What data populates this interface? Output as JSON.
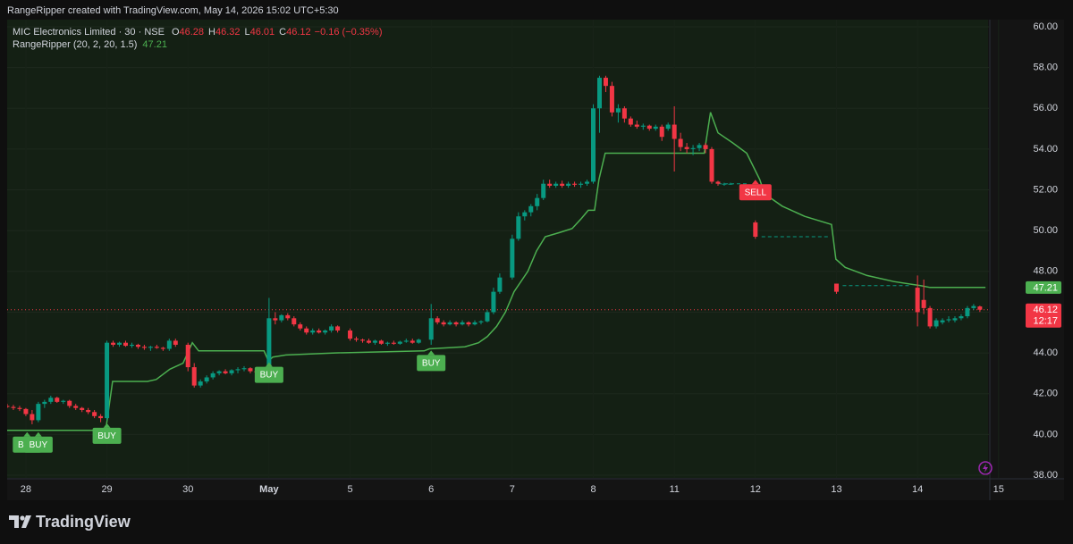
{
  "header": "RangeRipper created with TradingView.com, May 14, 2026 15:02 UTC+5:30",
  "footer": {
    "logo": "TradingView"
  },
  "chart_data": {
    "type": "candlestick",
    "symbol": "MIC Electronics Limited · 30 · NSE",
    "legend_labels": [
      "O",
      "H",
      "L",
      "C"
    ],
    "change": "−0.16 (−0.35%)",
    "countdown": "12:17",
    "up_color": "#089981",
    "down_color": "#f23645",
    "grid": true,
    "xlim": [
      -3,
      166.5
    ],
    "xticks": [
      {
        "value": 0,
        "label": "28"
      },
      {
        "value": 13,
        "label": "29"
      },
      {
        "value": 26,
        "label": "30"
      },
      {
        "value": 39,
        "label": "May"
      },
      {
        "value": 52,
        "label": "5"
      },
      {
        "value": 65,
        "label": "6"
      },
      {
        "value": 78,
        "label": "7"
      },
      {
        "value": 91,
        "label": "8"
      },
      {
        "value": 104,
        "label": "11"
      },
      {
        "value": 117,
        "label": "12"
      },
      {
        "value": 130,
        "label": "13"
      },
      {
        "value": 143,
        "label": "14"
      },
      {
        "value": 156,
        "label": "15"
      }
    ],
    "ylim": [
      38,
      60
    ],
    "yticks": [
      {
        "value": 38,
        "label": "38.00"
      },
      {
        "value": 40,
        "label": "40.00"
      },
      {
        "value": 42,
        "label": "42.00"
      },
      {
        "value": 44,
        "label": "44.00"
      },
      {
        "value": 46,
        "label": "46.00"
      },
      {
        "value": 48,
        "label": "48.00"
      },
      {
        "value": 50,
        "label": "50.00"
      },
      {
        "value": 52,
        "label": "52.00"
      },
      {
        "value": 54,
        "label": "54.00"
      },
      {
        "value": 56,
        "label": "56.00"
      },
      {
        "value": 58,
        "label": "58.00"
      },
      {
        "value": 60,
        "label": "60.00"
      }
    ],
    "indicator": {
      "name": "RangeRipper (20, 2, 20, 1.5)",
      "color": "#4caf50",
      "x": [
        -3,
        12.8,
        13.9,
        19.5,
        20.9,
        23.1,
        25.2,
        26.7,
        27.7,
        38.2,
        38.9,
        39.6,
        41.7,
        49.6,
        63.9,
        64.7,
        70.4,
        72.6,
        74,
        75.5,
        76.9,
        78.3,
        80.5,
        81.9,
        83.3,
        85.5,
        87.6,
        89.1,
        90.2,
        91.2,
        91.9,
        92.9,
        108.8,
        109.8,
        111,
        113.4,
        115.6,
        117.7,
        118.5,
        121.3,
        124.9,
        129.2,
        129.9,
        131.4,
        134.9,
        139.2,
        143.5,
        145,
        153.9
      ],
      "values": [
        40.2,
        40.2,
        42.6,
        42.6,
        42.7,
        43.2,
        43.5,
        44.5,
        44.1,
        44.1,
        43.6,
        43.8,
        43.9,
        44,
        44.1,
        44.2,
        44.3,
        44.5,
        44.8,
        45.3,
        46,
        47,
        48,
        49,
        49.7,
        49.9,
        50.1,
        50.6,
        51,
        51,
        52.5,
        53.8,
        53.8,
        55.8,
        54.8,
        54.3,
        53.8,
        52.5,
        51.8,
        51.2,
        50.7,
        50.3,
        48.6,
        48.2,
        47.8,
        47.5,
        47.3,
        47.21,
        47.21
      ]
    },
    "signals": [
      {
        "label": "BUY",
        "x": 0.2
      },
      {
        "label": "BUY",
        "x": 2
      },
      {
        "label": "BUY",
        "x": 13
      },
      {
        "label": "BUY",
        "x": 39
      },
      {
        "label": "BUY",
        "x": 65
      },
      {
        "label": "SELL",
        "x": 117
      }
    ],
    "dashes": [
      {
        "x": [
          111,
          116
        ],
        "value": 52.3
      },
      {
        "x": [
          118,
          129
        ],
        "value": 49.7
      },
      {
        "x": [
          131,
          142
        ],
        "value": 47.3
      }
    ],
    "candles": [
      {
        "x": -3,
        "o": 41.4,
        "h": 41.5,
        "l": 41.3,
        "c": 41.35
      },
      {
        "x": -2,
        "o": 41.35,
        "h": 41.45,
        "l": 41.2,
        "c": 41.3
      },
      {
        "x": -1,
        "o": 41.3,
        "h": 41.4,
        "l": 41.15,
        "c": 41.25
      },
      {
        "x": 0,
        "o": 41.25,
        "h": 41.3,
        "l": 40.9,
        "c": 41
      },
      {
        "x": 1,
        "o": 41,
        "h": 41.2,
        "l": 40.5,
        "c": 40.7
      },
      {
        "x": 2,
        "o": 40.7,
        "h": 41.6,
        "l": 40.6,
        "c": 41.5
      },
      {
        "x": 3,
        "o": 41.5,
        "h": 41.7,
        "l": 41.3,
        "c": 41.6
      },
      {
        "x": 4,
        "o": 41.6,
        "h": 41.9,
        "l": 41.5,
        "c": 41.8
      },
      {
        "x": 5,
        "o": 41.8,
        "h": 41.85,
        "l": 41.55,
        "c": 41.6
      },
      {
        "x": 6,
        "o": 41.6,
        "h": 41.7,
        "l": 41.5,
        "c": 41.65
      },
      {
        "x": 7,
        "o": 41.65,
        "h": 41.7,
        "l": 41.3,
        "c": 41.4
      },
      {
        "x": 8,
        "o": 41.4,
        "h": 41.5,
        "l": 41.2,
        "c": 41.3
      },
      {
        "x": 9,
        "o": 41.3,
        "h": 41.35,
        "l": 41.1,
        "c": 41.2
      },
      {
        "x": 10,
        "o": 41.2,
        "h": 41.3,
        "l": 41,
        "c": 41.1
      },
      {
        "x": 11,
        "o": 41.1,
        "h": 41.2,
        "l": 40.8,
        "c": 40.9
      },
      {
        "x": 12,
        "o": 40.9,
        "h": 41,
        "l": 40.6,
        "c": 40.8
      },
      {
        "x": 13,
        "o": 40.8,
        "h": 44.6,
        "l": 40.7,
        "c": 44.5
      },
      {
        "x": 14,
        "o": 44.5,
        "h": 44.6,
        "l": 44.3,
        "c": 44.4
      },
      {
        "x": 15,
        "o": 44.4,
        "h": 44.55,
        "l": 44.3,
        "c": 44.5
      },
      {
        "x": 16,
        "o": 44.5,
        "h": 44.6,
        "l": 44.3,
        "c": 44.35
      },
      {
        "x": 17,
        "o": 44.35,
        "h": 44.5,
        "l": 44.25,
        "c": 44.4
      },
      {
        "x": 18,
        "o": 44.4,
        "h": 44.45,
        "l": 44.2,
        "c": 44.3
      },
      {
        "x": 19,
        "o": 44.3,
        "h": 44.4,
        "l": 44.15,
        "c": 44.25
      },
      {
        "x": 20,
        "o": 44.25,
        "h": 44.35,
        "l": 44.1,
        "c": 44.3
      },
      {
        "x": 21,
        "o": 44.3,
        "h": 44.4,
        "l": 44.2,
        "c": 44.25
      },
      {
        "x": 22,
        "o": 44.25,
        "h": 44.3,
        "l": 44.1,
        "c": 44.2
      },
      {
        "x": 23,
        "o": 44.2,
        "h": 44.7,
        "l": 44.1,
        "c": 44.6
      },
      {
        "x": 24,
        "o": 44.6,
        "h": 44.7,
        "l": 44.3,
        "c": 44.4
      },
      {
        "x": 26,
        "o": 44.4,
        "h": 44.5,
        "l": 43.1,
        "c": 43.3
      },
      {
        "x": 27,
        "o": 43.3,
        "h": 43.5,
        "l": 42.3,
        "c": 42.4
      },
      {
        "x": 28,
        "o": 42.4,
        "h": 42.7,
        "l": 42.3,
        "c": 42.6
      },
      {
        "x": 29,
        "o": 42.6,
        "h": 42.9,
        "l": 42.5,
        "c": 42.8
      },
      {
        "x": 30,
        "o": 42.8,
        "h": 43.1,
        "l": 42.7,
        "c": 43
      },
      {
        "x": 31,
        "o": 43,
        "h": 43.15,
        "l": 42.9,
        "c": 43.1
      },
      {
        "x": 32,
        "o": 43.1,
        "h": 43.2,
        "l": 42.95,
        "c": 43
      },
      {
        "x": 33,
        "o": 43,
        "h": 43.2,
        "l": 42.9,
        "c": 43.15
      },
      {
        "x": 34,
        "o": 43.15,
        "h": 43.3,
        "l": 43,
        "c": 43.2
      },
      {
        "x": 35,
        "o": 43.2,
        "h": 43.35,
        "l": 43.1,
        "c": 43.25
      },
      {
        "x": 36,
        "o": 43.25,
        "h": 43.3,
        "l": 43,
        "c": 43.1
      },
      {
        "x": 37,
        "o": 43.1,
        "h": 43.2,
        "l": 42.9,
        "c": 43.05
      },
      {
        "x": 38,
        "o": 43.05,
        "h": 43.2,
        "l": 43,
        "c": 43.1
      },
      {
        "x": 39,
        "o": 43.1,
        "h": 46.7,
        "l": 43,
        "c": 45.7
      },
      {
        "x": 40,
        "o": 45.7,
        "h": 46,
        "l": 45.4,
        "c": 45.6
      },
      {
        "x": 41,
        "o": 45.6,
        "h": 45.9,
        "l": 45.5,
        "c": 45.85
      },
      {
        "x": 42,
        "o": 45.85,
        "h": 45.95,
        "l": 45.6,
        "c": 45.7
      },
      {
        "x": 43,
        "o": 45.7,
        "h": 45.8,
        "l": 45.3,
        "c": 45.4
      },
      {
        "x": 44,
        "o": 45.4,
        "h": 45.5,
        "l": 45.1,
        "c": 45.2
      },
      {
        "x": 45,
        "o": 45.2,
        "h": 45.3,
        "l": 44.9,
        "c": 45
      },
      {
        "x": 46,
        "o": 45,
        "h": 45.2,
        "l": 44.9,
        "c": 45.1
      },
      {
        "x": 47,
        "o": 45.1,
        "h": 45.2,
        "l": 44.95,
        "c": 45
      },
      {
        "x": 48,
        "o": 45,
        "h": 45.15,
        "l": 44.9,
        "c": 45.1
      },
      {
        "x": 49,
        "o": 45.1,
        "h": 45.4,
        "l": 45,
        "c": 45.3
      },
      {
        "x": 50,
        "o": 45.3,
        "h": 45.35,
        "l": 45,
        "c": 45.1
      },
      {
        "x": 52,
        "o": 45.1,
        "h": 45.2,
        "l": 44.6,
        "c": 44.7
      },
      {
        "x": 53,
        "o": 44.7,
        "h": 44.8,
        "l": 44.55,
        "c": 44.65
      },
      {
        "x": 54,
        "o": 44.65,
        "h": 44.7,
        "l": 44.5,
        "c": 44.6
      },
      {
        "x": 55,
        "o": 44.6,
        "h": 44.7,
        "l": 44.45,
        "c": 44.5
      },
      {
        "x": 56,
        "o": 44.5,
        "h": 44.65,
        "l": 44.4,
        "c": 44.6
      },
      {
        "x": 57,
        "o": 44.6,
        "h": 44.65,
        "l": 44.4,
        "c": 44.45
      },
      {
        "x": 58,
        "o": 44.45,
        "h": 44.55,
        "l": 44.35,
        "c": 44.5
      },
      {
        "x": 59,
        "o": 44.5,
        "h": 44.6,
        "l": 44.4,
        "c": 44.45
      },
      {
        "x": 60,
        "o": 44.45,
        "h": 44.6,
        "l": 44.4,
        "c": 44.55
      },
      {
        "x": 61,
        "o": 44.55,
        "h": 44.7,
        "l": 44.5,
        "c": 44.6
      },
      {
        "x": 62,
        "o": 44.6,
        "h": 44.7,
        "l": 44.45,
        "c": 44.5
      },
      {
        "x": 63,
        "o": 44.5,
        "h": 44.7,
        "l": 44.45,
        "c": 44.65
      },
      {
        "x": 65,
        "o": 44.65,
        "h": 46.4,
        "l": 44.4,
        "c": 45.7
      },
      {
        "x": 66,
        "o": 45.7,
        "h": 45.8,
        "l": 45.4,
        "c": 45.5
      },
      {
        "x": 67,
        "o": 45.5,
        "h": 45.6,
        "l": 45.3,
        "c": 45.4
      },
      {
        "x": 68,
        "o": 45.4,
        "h": 45.6,
        "l": 45.35,
        "c": 45.5
      },
      {
        "x": 69,
        "o": 45.5,
        "h": 45.55,
        "l": 45.3,
        "c": 45.4
      },
      {
        "x": 70,
        "o": 45.4,
        "h": 45.6,
        "l": 45.35,
        "c": 45.5
      },
      {
        "x": 71,
        "o": 45.5,
        "h": 45.55,
        "l": 45.3,
        "c": 45.4
      },
      {
        "x": 72,
        "o": 45.4,
        "h": 45.6,
        "l": 45.35,
        "c": 45.5
      },
      {
        "x": 73,
        "o": 45.5,
        "h": 45.6,
        "l": 45.4,
        "c": 45.55
      },
      {
        "x": 74,
        "o": 45.55,
        "h": 46.1,
        "l": 45.5,
        "c": 46
      },
      {
        "x": 75,
        "o": 46,
        "h": 47.2,
        "l": 45.9,
        "c": 47
      },
      {
        "x": 76,
        "o": 47,
        "h": 47.9,
        "l": 46.9,
        "c": 47.7
      },
      {
        "x": 78,
        "o": 47.7,
        "h": 49.8,
        "l": 47.6,
        "c": 49.6
      },
      {
        "x": 79,
        "o": 49.6,
        "h": 50.9,
        "l": 49.5,
        "c": 50.7
      },
      {
        "x": 80,
        "o": 50.7,
        "h": 51,
        "l": 50.5,
        "c": 50.9
      },
      {
        "x": 81,
        "o": 50.9,
        "h": 51.3,
        "l": 50.7,
        "c": 51.2
      },
      {
        "x": 82,
        "o": 51.2,
        "h": 51.8,
        "l": 51,
        "c": 51.6
      },
      {
        "x": 83,
        "o": 51.6,
        "h": 52.5,
        "l": 51.5,
        "c": 52.3
      },
      {
        "x": 84,
        "o": 52.3,
        "h": 52.5,
        "l": 52.1,
        "c": 52.2
      },
      {
        "x": 85,
        "o": 52.2,
        "h": 52.4,
        "l": 52.1,
        "c": 52.3
      },
      {
        "x": 86,
        "o": 52.3,
        "h": 52.45,
        "l": 52.1,
        "c": 52.2
      },
      {
        "x": 87,
        "o": 52.2,
        "h": 52.4,
        "l": 52.1,
        "c": 52.3
      },
      {
        "x": 88,
        "o": 52.3,
        "h": 52.4,
        "l": 52.15,
        "c": 52.25
      },
      {
        "x": 89,
        "o": 52.25,
        "h": 52.4,
        "l": 52.1,
        "c": 52.3
      },
      {
        "x": 90,
        "o": 52.3,
        "h": 52.5,
        "l": 52.2,
        "c": 52.4
      },
      {
        "x": 91,
        "o": 52.4,
        "h": 56.2,
        "l": 52.3,
        "c": 56
      },
      {
        "x": 92,
        "o": 56,
        "h": 57.6,
        "l": 54.8,
        "c": 57.5
      },
      {
        "x": 93,
        "o": 57.5,
        "h": 57.6,
        "l": 56.8,
        "c": 57.1
      },
      {
        "x": 94,
        "o": 57.1,
        "h": 57.3,
        "l": 55.6,
        "c": 55.8
      },
      {
        "x": 95,
        "o": 55.8,
        "h": 56.2,
        "l": 55.3,
        "c": 56
      },
      {
        "x": 96,
        "o": 56,
        "h": 56.1,
        "l": 55.3,
        "c": 55.5
      },
      {
        "x": 97,
        "o": 55.5,
        "h": 55.6,
        "l": 55.1,
        "c": 55.2
      },
      {
        "x": 98,
        "o": 55.2,
        "h": 55.4,
        "l": 55,
        "c": 55.1
      },
      {
        "x": 99,
        "o": 55.1,
        "h": 55.25,
        "l": 54.95,
        "c": 55.15
      },
      {
        "x": 100,
        "o": 55.15,
        "h": 55.2,
        "l": 54.9,
        "c": 55
      },
      {
        "x": 101,
        "o": 55,
        "h": 55.2,
        "l": 54.9,
        "c": 55.1
      },
      {
        "x": 102,
        "o": 55.1,
        "h": 55.2,
        "l": 54.4,
        "c": 54.6
      },
      {
        "x": 103,
        "o": 55,
        "h": 55.3,
        "l": 54.9,
        "c": 55.2
      },
      {
        "x": 104,
        "o": 55.2,
        "h": 56.1,
        "l": 52.9,
        "c": 54.5
      },
      {
        "x": 105,
        "o": 54.5,
        "h": 54.8,
        "l": 53.9,
        "c": 54.1
      },
      {
        "x": 106,
        "o": 54.1,
        "h": 54.3,
        "l": 53.8,
        "c": 54
      },
      {
        "x": 107,
        "o": 54,
        "h": 54.2,
        "l": 53.7,
        "c": 54.05
      },
      {
        "x": 108,
        "o": 54.05,
        "h": 54.3,
        "l": 53.9,
        "c": 54.2
      },
      {
        "x": 109,
        "o": 54.2,
        "h": 54.3,
        "l": 53.8,
        "c": 54
      },
      {
        "x": 110,
        "o": 54,
        "h": 54.1,
        "l": 52.3,
        "c": 52.4
      },
      {
        "x": 111,
        "o": 52.4,
        "h": 52.45,
        "l": 52.2,
        "c": 52.3
      },
      {
        "x": 112,
        "o": 52.3,
        "h": 52.35,
        "l": 52.2,
        "c": 52.3
      },
      {
        "x": 113,
        "o": 52.3,
        "h": 52.35,
        "l": 52.25,
        "c": 52.3
      },
      {
        "x": 117,
        "o": 50.4,
        "h": 50.5,
        "l": 49.6,
        "c": 49.7
      },
      {
        "x": 130,
        "o": 47.4,
        "h": 47.4,
        "l": 46.9,
        "c": 47
      },
      {
        "x": 143,
        "o": 47.2,
        "h": 47.8,
        "l": 45.3,
        "c": 46
      },
      {
        "x": 144,
        "o": 46.6,
        "h": 47.6,
        "l": 45.9,
        "c": 46.2
      },
      {
        "x": 145,
        "o": 46.2,
        "h": 46.3,
        "l": 45.2,
        "c": 45.3
      },
      {
        "x": 146,
        "o": 45.3,
        "h": 45.7,
        "l": 45.2,
        "c": 45.6
      },
      {
        "x": 147,
        "o": 45.5,
        "h": 45.7,
        "l": 45.4,
        "c": 45.6
      },
      {
        "x": 148,
        "o": 45.6,
        "h": 45.8,
        "l": 45.5,
        "c": 45.65
      },
      {
        "x": 149,
        "o": 45.6,
        "h": 45.8,
        "l": 45.5,
        "c": 45.7
      },
      {
        "x": 150,
        "o": 45.7,
        "h": 45.9,
        "l": 45.6,
        "c": 45.8
      },
      {
        "x": 151,
        "o": 45.8,
        "h": 46.3,
        "l": 45.7,
        "c": 46.2
      },
      {
        "x": 152,
        "o": 46.2,
        "h": 46.4,
        "l": 46.1,
        "c": 46.3
      },
      {
        "x": 153,
        "o": 46.28,
        "h": 46.32,
        "l": 46.01,
        "c": 46.12
      }
    ]
  }
}
